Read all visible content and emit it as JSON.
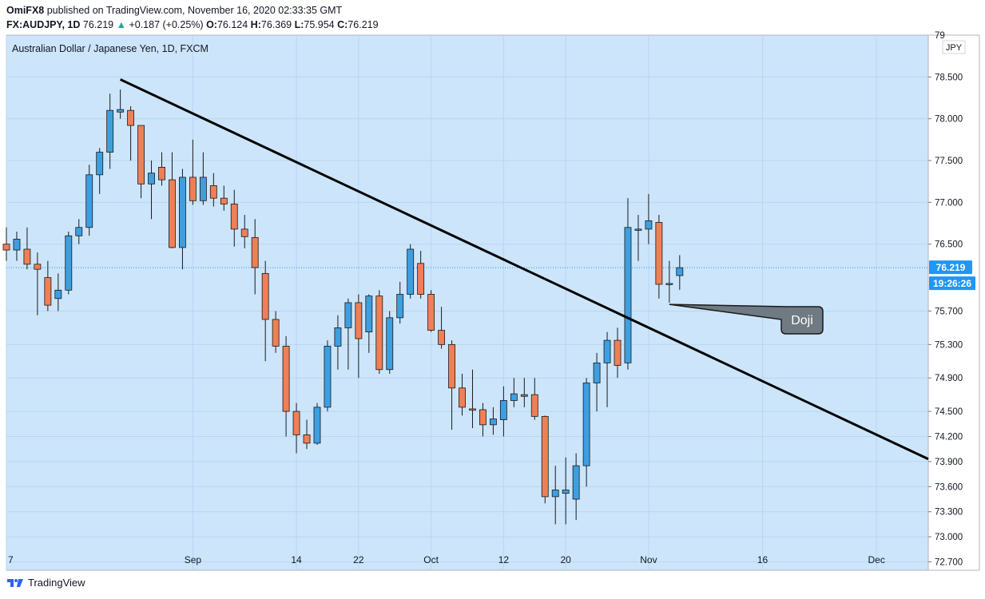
{
  "header": {
    "publisher": "OmiFX8",
    "published_text": "published on TradingView.com, November 16, 2020 02:33:35 GMT",
    "symbol": "FX:AUDJPY, 1D",
    "last": "76.219",
    "change_arrow": "▲",
    "change": "+0.187 (+0.25%)",
    "o_label": "O:",
    "o": "76.124",
    "h_label": "H:",
    "h": "76.369",
    "l_label": "L:",
    "l": "75.954",
    "c_label": "C:",
    "c": "76.219"
  },
  "footer": {
    "brand": "TradingView",
    "logo_icon": "tradingview-logo-icon"
  },
  "colors": {
    "background": "#cce5fb",
    "up": "#3d9fe0",
    "down": "#ef7f57",
    "wick": "#1a1a1a",
    "trendline": "#000000",
    "price_tag": "#2196f3",
    "callout": "#707a83"
  },
  "chart_data": {
    "type": "candlestick",
    "title": "Australian Dollar / Japanese Yen, 1D, FXCM",
    "currency": "JPY",
    "ylim": [
      72.6,
      79.0
    ],
    "y_ticks": [
      "72.700",
      "73.000",
      "73.300",
      "73.600",
      "73.900",
      "74.200",
      "74.500",
      "74.900",
      "75.300",
      "75.700",
      "76.500",
      "77.000",
      "77.500",
      "78.000",
      "78.500"
    ],
    "y_top_partial": "79",
    "x_ticks": [
      {
        "label": "7",
        "index": 0
      },
      {
        "label": "Sep",
        "index": 18
      },
      {
        "label": "14",
        "index": 28
      },
      {
        "label": "22",
        "index": 34
      },
      {
        "label": "Oct",
        "index": 41
      },
      {
        "label": "12",
        "index": 48
      },
      {
        "label": "20",
        "index": 54
      },
      {
        "label": "Nov",
        "index": 62
      },
      {
        "label": "16",
        "index": 73
      },
      {
        "label": "Dec",
        "index": 84
      }
    ],
    "x_range": [
      0,
      89
    ],
    "candles": [
      {
        "i": 0,
        "o": 76.5,
        "h": 76.7,
        "l": 76.3,
        "c": 76.43
      },
      {
        "i": 1,
        "o": 76.43,
        "h": 76.65,
        "l": 76.3,
        "c": 76.56
      },
      {
        "i": 2,
        "o": 76.44,
        "h": 76.7,
        "l": 76.2,
        "c": 76.26
      },
      {
        "i": 3,
        "o": 76.26,
        "h": 76.4,
        "l": 75.65,
        "c": 76.2
      },
      {
        "i": 4,
        "o": 76.1,
        "h": 76.3,
        "l": 75.7,
        "c": 75.77
      },
      {
        "i": 5,
        "o": 75.85,
        "h": 76.15,
        "l": 75.7,
        "c": 75.95
      },
      {
        "i": 6,
        "o": 75.95,
        "h": 76.65,
        "l": 75.9,
        "c": 76.6
      },
      {
        "i": 7,
        "o": 76.6,
        "h": 76.8,
        "l": 76.5,
        "c": 76.7
      },
      {
        "i": 8,
        "o": 76.7,
        "h": 77.45,
        "l": 76.6,
        "c": 77.33
      },
      {
        "i": 9,
        "o": 77.33,
        "h": 77.65,
        "l": 77.1,
        "c": 77.6
      },
      {
        "i": 10,
        "o": 77.6,
        "h": 78.3,
        "l": 77.4,
        "c": 78.1
      },
      {
        "i": 11,
        "o": 78.08,
        "h": 78.35,
        "l": 78.0,
        "c": 78.11
      },
      {
        "i": 12,
        "o": 78.1,
        "h": 78.15,
        "l": 77.5,
        "c": 77.92
      },
      {
        "i": 13,
        "o": 77.92,
        "h": 77.92,
        "l": 77.05,
        "c": 77.22
      },
      {
        "i": 14,
        "o": 77.22,
        "h": 77.5,
        "l": 76.8,
        "c": 77.35
      },
      {
        "i": 15,
        "o": 77.42,
        "h": 77.6,
        "l": 77.2,
        "c": 77.27
      },
      {
        "i": 16,
        "o": 77.27,
        "h": 77.6,
        "l": 76.45,
        "c": 76.46
      },
      {
        "i": 17,
        "o": 76.46,
        "h": 77.4,
        "l": 76.2,
        "c": 77.3
      },
      {
        "i": 18,
        "o": 77.3,
        "h": 77.75,
        "l": 76.97,
        "c": 77.02
      },
      {
        "i": 19,
        "o": 77.02,
        "h": 77.6,
        "l": 76.97,
        "c": 77.3
      },
      {
        "i": 20,
        "o": 77.2,
        "h": 77.35,
        "l": 76.95,
        "c": 77.05
      },
      {
        "i": 21,
        "o": 77.05,
        "h": 77.2,
        "l": 76.9,
        "c": 76.98
      },
      {
        "i": 22,
        "o": 76.98,
        "h": 77.15,
        "l": 76.47,
        "c": 76.68
      },
      {
        "i": 23,
        "o": 76.68,
        "h": 76.85,
        "l": 76.45,
        "c": 76.59
      },
      {
        "i": 24,
        "o": 76.58,
        "h": 76.8,
        "l": 75.9,
        "c": 76.22
      },
      {
        "i": 25,
        "o": 76.15,
        "h": 76.3,
        "l": 75.1,
        "c": 75.6
      },
      {
        "i": 26,
        "o": 75.6,
        "h": 75.7,
        "l": 75.2,
        "c": 75.28
      },
      {
        "i": 27,
        "o": 75.28,
        "h": 75.4,
        "l": 74.2,
        "c": 74.5
      },
      {
        "i": 28,
        "o": 74.5,
        "h": 74.6,
        "l": 74.0,
        "c": 74.22
      },
      {
        "i": 29,
        "o": 74.22,
        "h": 74.4,
        "l": 74.05,
        "c": 74.12
      },
      {
        "i": 30,
        "o": 74.12,
        "h": 74.6,
        "l": 74.1,
        "c": 74.55
      },
      {
        "i": 31,
        "o": 74.55,
        "h": 75.35,
        "l": 74.5,
        "c": 75.28
      },
      {
        "i": 32,
        "o": 75.28,
        "h": 75.65,
        "l": 75.0,
        "c": 75.5
      },
      {
        "i": 33,
        "o": 75.5,
        "h": 75.85,
        "l": 75.0,
        "c": 75.8
      },
      {
        "i": 34,
        "o": 75.8,
        "h": 75.9,
        "l": 74.9,
        "c": 75.37
      },
      {
        "i": 35,
        "o": 75.45,
        "h": 75.9,
        "l": 75.2,
        "c": 75.88
      },
      {
        "i": 36,
        "o": 75.88,
        "h": 75.95,
        "l": 74.95,
        "c": 75.0
      },
      {
        "i": 37,
        "o": 75.0,
        "h": 75.7,
        "l": 74.95,
        "c": 75.62
      },
      {
        "i": 38,
        "o": 75.62,
        "h": 76.05,
        "l": 75.55,
        "c": 75.9
      },
      {
        "i": 39,
        "o": 75.9,
        "h": 76.5,
        "l": 75.85,
        "c": 76.44
      },
      {
        "i": 40,
        "o": 76.27,
        "h": 76.42,
        "l": 75.85,
        "c": 75.9
      },
      {
        "i": 41,
        "o": 75.9,
        "h": 75.95,
        "l": 75.45,
        "c": 75.47
      },
      {
        "i": 42,
        "o": 75.47,
        "h": 75.75,
        "l": 75.25,
        "c": 75.3
      },
      {
        "i": 43,
        "o": 75.3,
        "h": 75.35,
        "l": 74.28,
        "c": 74.78
      },
      {
        "i": 44,
        "o": 74.78,
        "h": 74.95,
        "l": 74.45,
        "c": 74.55
      },
      {
        "i": 45,
        "o": 74.53,
        "h": 75.0,
        "l": 74.3,
        "c": 74.52
      },
      {
        "i": 46,
        "o": 74.52,
        "h": 74.6,
        "l": 74.2,
        "c": 74.34
      },
      {
        "i": 47,
        "o": 74.34,
        "h": 74.55,
        "l": 74.22,
        "c": 74.41
      },
      {
        "i": 48,
        "o": 74.4,
        "h": 74.8,
        "l": 74.2,
        "c": 74.63
      },
      {
        "i": 49,
        "o": 74.63,
        "h": 74.9,
        "l": 74.55,
        "c": 74.71
      },
      {
        "i": 50,
        "o": 74.68,
        "h": 74.9,
        "l": 74.55,
        "c": 74.7
      },
      {
        "i": 51,
        "o": 74.7,
        "h": 74.9,
        "l": 74.4,
        "c": 74.44
      },
      {
        "i": 52,
        "o": 74.44,
        "h": 74.45,
        "l": 73.4,
        "c": 73.48
      },
      {
        "i": 53,
        "o": 73.48,
        "h": 73.85,
        "l": 73.15,
        "c": 73.56
      },
      {
        "i": 54,
        "o": 73.52,
        "h": 73.95,
        "l": 73.15,
        "c": 73.56
      },
      {
        "i": 55,
        "o": 73.45,
        "h": 74.0,
        "l": 73.2,
        "c": 73.85
      },
      {
        "i": 56,
        "o": 73.85,
        "h": 74.9,
        "l": 73.6,
        "c": 74.84
      },
      {
        "i": 57,
        "o": 74.84,
        "h": 75.2,
        "l": 74.5,
        "c": 75.08
      },
      {
        "i": 58,
        "o": 75.08,
        "h": 75.45,
        "l": 74.55,
        "c": 75.35
      },
      {
        "i": 59,
        "o": 75.35,
        "h": 75.5,
        "l": 74.9,
        "c": 75.05
      },
      {
        "i": 60,
        "o": 75.08,
        "h": 77.05,
        "l": 75.0,
        "c": 76.7
      },
      {
        "i": 61,
        "o": 76.67,
        "h": 76.85,
        "l": 76.3,
        "c": 76.68
      },
      {
        "i": 62,
        "o": 76.68,
        "h": 77.1,
        "l": 76.5,
        "c": 76.78
      },
      {
        "i": 63,
        "o": 76.76,
        "h": 76.85,
        "l": 75.85,
        "c": 76.02
      },
      {
        "i": 64,
        "o": 76.02,
        "h": 76.3,
        "l": 75.8,
        "c": 76.03
      },
      {
        "i": 65,
        "o": 76.124,
        "h": 76.369,
        "l": 75.954,
        "c": 76.219
      }
    ],
    "current_price": "76.219",
    "countdown": "19:26:26",
    "trendline": {
      "from": {
        "i": 11,
        "price": 78.47
      },
      "to": {
        "i": 89,
        "price": 73.93
      }
    },
    "annotation": {
      "text": "Doji",
      "target_index": 64,
      "target_price": 75.78
    }
  }
}
